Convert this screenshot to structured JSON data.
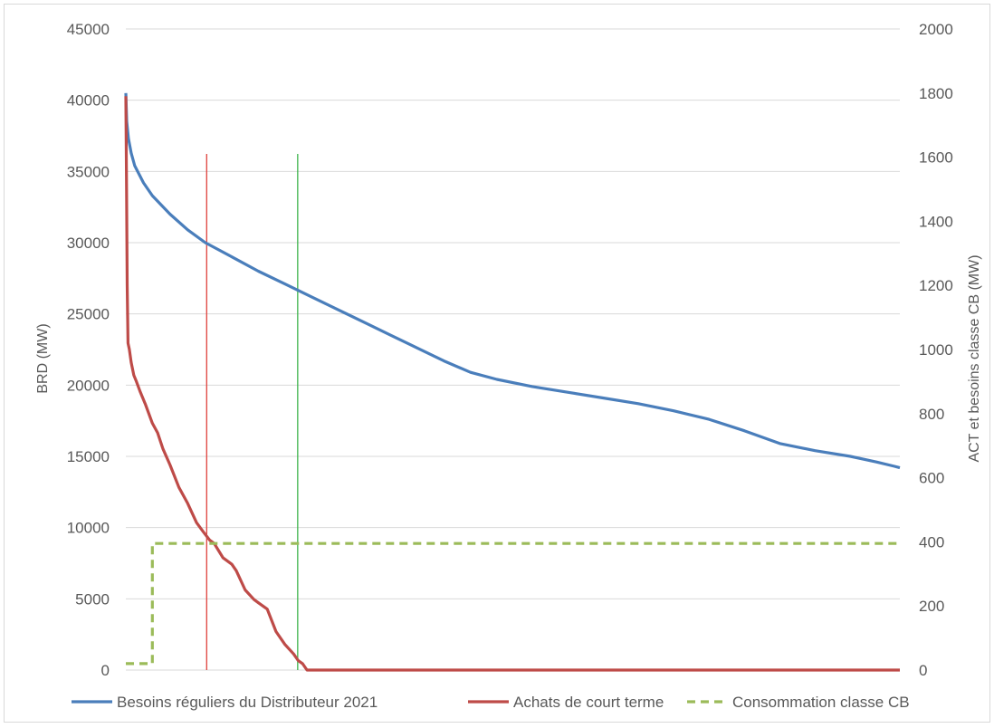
{
  "chart_data": {
    "type": "line",
    "title": "",
    "ylabel": "BRD (MW)",
    "y2label": "ACT et besoins classe CB (MW)",
    "ylim": [
      0,
      45000
    ],
    "y2lim": [
      0,
      2000
    ],
    "yticks": [
      "0",
      "5000",
      "10000",
      "15000",
      "20000",
      "25000",
      "30000",
      "35000",
      "40000",
      "45000"
    ],
    "y2ticks": [
      "0",
      "200",
      "400",
      "600",
      "800",
      "1000",
      "1200",
      "1400",
      "1600",
      "1800",
      "2000"
    ],
    "xlim": [
      0,
      8760
    ],
    "grid": true,
    "legend_position": "bottom",
    "series": [
      {
        "name": "Besoins réguliers du Distributeur 2021",
        "axis": "left",
        "color": "#4a7ebb",
        "x": [
          0,
          10,
          30,
          60,
          100,
          200,
          300,
          500,
          700,
          900,
          1200,
          1500,
          1800,
          2100,
          2400,
          2700,
          3000,
          3300,
          3600,
          3900,
          4200,
          4600,
          5000,
          5400,
          5800,
          6200,
          6600,
          7000,
          7400,
          7800,
          8200,
          8500,
          8700,
          8760
        ],
        "values": [
          40500,
          38500,
          37300,
          36300,
          35400,
          34200,
          33300,
          32000,
          30900,
          30000,
          29000,
          28000,
          27100,
          26200,
          25300,
          24400,
          23500,
          22600,
          21700,
          20900,
          20400,
          19900,
          19500,
          19100,
          18700,
          18200,
          17600,
          16800,
          15900,
          15400,
          15000,
          14600,
          14300,
          14200
        ]
      },
      {
        "name": "Achats de court terme",
        "axis": "right",
        "color": "#be4b48",
        "x": [
          0,
          8,
          15,
          25,
          40,
          60,
          90,
          120,
          160,
          220,
          300,
          360,
          420,
          500,
          600,
          700,
          800,
          880,
          950,
          1000,
          1100,
          1200,
          1250,
          1350,
          1450,
          1500,
          1600,
          1700,
          1800,
          1900,
          1950,
          2000,
          2050,
          8760
        ],
        "values": [
          1790,
          1500,
          1200,
          1020,
          1000,
          960,
          920,
          900,
          870,
          830,
          770,
          740,
          690,
          640,
          570,
          520,
          460,
          430,
          405,
          395,
          350,
          330,
          310,
          250,
          220,
          210,
          190,
          120,
          80,
          50,
          30,
          20,
          0,
          0
        ]
      },
      {
        "name": "Consommation classe CB",
        "axis": "right",
        "color": "#9bbb59",
        "dashed": true,
        "x": [
          0,
          300,
          300,
          8760
        ],
        "values": [
          20,
          20,
          395,
          395
        ]
      }
    ],
    "vertical_markers": [
      {
        "x": 915,
        "color": "#e0403c",
        "y2_top": 1610
      },
      {
        "x": 1945,
        "color": "#3cb34a",
        "y2_top": 1610
      }
    ]
  }
}
